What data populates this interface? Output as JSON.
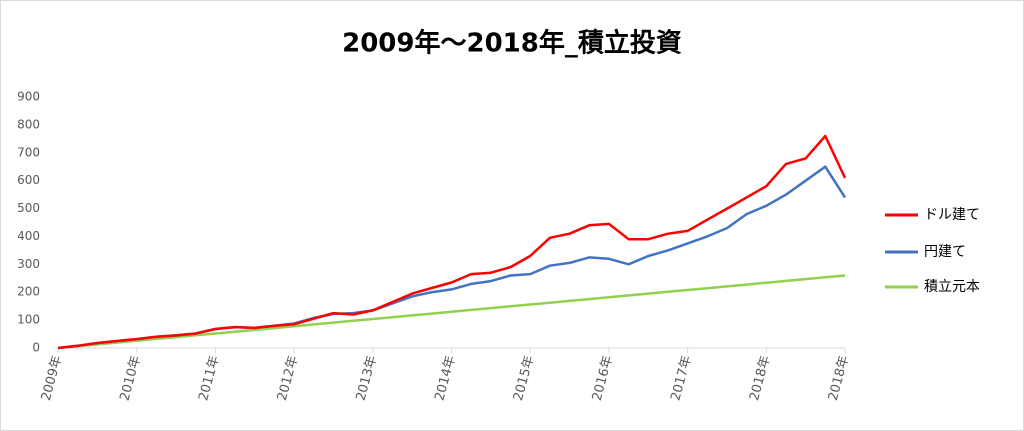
{
  "chart_data": {
    "type": "line",
    "title": "2009年～2018年_積立投資",
    "categories": [
      "2009年",
      null,
      null,
      null,
      "2010年",
      null,
      null,
      null,
      "2011年",
      null,
      null,
      null,
      "2012年",
      null,
      null,
      null,
      "2013年",
      null,
      null,
      null,
      "2014年",
      null,
      null,
      null,
      "2015年",
      null,
      null,
      null,
      "2016年",
      null,
      null,
      null,
      "2017年",
      null,
      null,
      null,
      "2018年",
      null,
      null,
      null,
      "2018年"
    ],
    "series": [
      {
        "name": "ドル建て",
        "color": "#ff0000",
        "values": [
          0,
          8,
          18,
          25,
          32,
          40,
          45,
          52,
          68,
          75,
          72,
          80,
          85,
          105,
          125,
          120,
          135,
          165,
          195,
          215,
          235,
          265,
          270,
          290,
          330,
          395,
          410,
          440,
          445,
          390,
          390,
          410,
          420,
          460,
          500,
          540,
          580,
          660,
          680,
          760,
          610
        ]
      },
      {
        "name": "円建て",
        "color": "#4472c4",
        "values": [
          0,
          8,
          18,
          25,
          32,
          40,
          45,
          52,
          68,
          75,
          72,
          80,
          88,
          108,
          122,
          125,
          135,
          160,
          185,
          200,
          210,
          230,
          240,
          260,
          265,
          295,
          305,
          325,
          320,
          300,
          330,
          350,
          375,
          400,
          430,
          480,
          510,
          550,
          600,
          650,
          540
        ]
      },
      {
        "name": "積立元本",
        "color": "#92d050",
        "values": [
          0,
          6.5,
          13,
          19.5,
          26,
          32.5,
          39,
          45.5,
          52,
          58.5,
          65,
          71.5,
          78,
          84.5,
          91,
          97.5,
          104,
          110.5,
          117,
          123.5,
          130,
          136.5,
          143,
          149.5,
          156,
          162.5,
          169,
          175.5,
          182,
          188.5,
          195,
          201.5,
          208,
          214.5,
          221,
          227.5,
          234,
          240.5,
          247,
          253.5,
          260
        ]
      }
    ],
    "ylim": [
      0,
      900
    ],
    "yticks": [
      0,
      100,
      200,
      300,
      400,
      500,
      600,
      700,
      800,
      900
    ],
    "grid": false,
    "legend": "right"
  }
}
